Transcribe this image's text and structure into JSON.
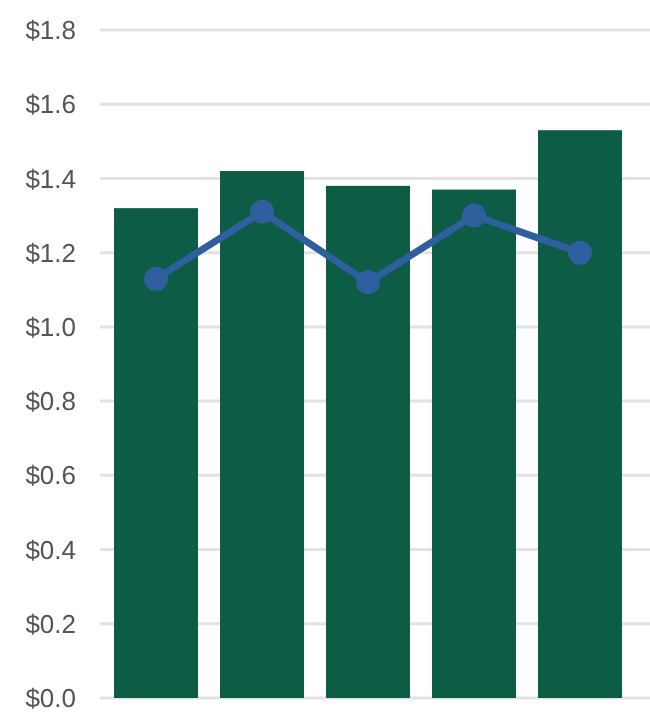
{
  "chart_data": {
    "type": "bar",
    "categories": [
      null,
      null,
      null,
      null,
      null
    ],
    "series": [
      {
        "color": "#0d5c45",
        "values": [
          1.32,
          1.42,
          1.38,
          1.37,
          1.53
        ]
      },
      {
        "type": "line",
        "color": "#2f5f9e",
        "values": [
          1.13,
          1.31,
          1.12,
          1.3,
          1.2
        ]
      }
    ],
    "ylim": [
      0,
      1.8
    ],
    "yticks": [
      {
        "value": 0,
        "label": "$0.0"
      },
      {
        "value": 0.2,
        "label": "$0.2"
      },
      {
        "value": 0.4,
        "label": "$0.4"
      },
      {
        "value": 0.6,
        "label": "$0.6"
      },
      {
        "value": 0.8,
        "label": "$0.8"
      },
      {
        "value": 1.0,
        "label": "$1.0"
      },
      {
        "value": 1.2,
        "label": "$1.2"
      },
      {
        "value": 1.4,
        "label": "$1.4"
      },
      {
        "value": 1.6,
        "label": "$1.6"
      },
      {
        "value": 1.8,
        "label": "$1.8"
      }
    ],
    "grid": "y",
    "marker": "circle",
    "line_style": "solid"
  }
}
